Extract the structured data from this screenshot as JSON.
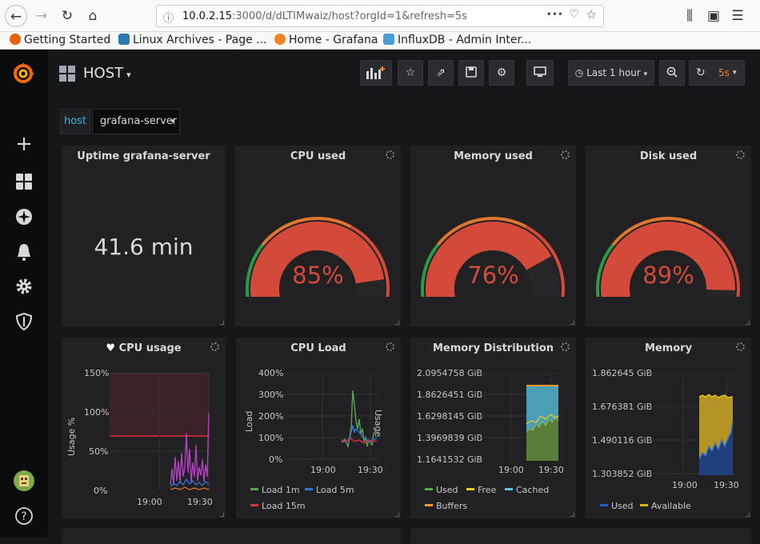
{
  "browser": {
    "url_host": "10.0.2.15",
    "url_rest": ":3000/d/dLTIMwaiz/host?orgId=1&refresh=5s",
    "menu_dots": "•••",
    "bookmarks": [
      {
        "label": "Getting Started",
        "color": "#e66000"
      },
      {
        "label": "Linux Archives - Page ...",
        "color": "#2a7ab0"
      },
      {
        "label": "Home - Grafana",
        "color": "#f58220"
      },
      {
        "label": "InfluxDB - Admin Inter...",
        "color": "#4a9fd8"
      }
    ]
  },
  "dashboard": {
    "title": "HOST",
    "time_range": "Last 1 hour",
    "refresh": "5s"
  },
  "variable": {
    "label": "host",
    "value": "grafana-server"
  },
  "panels": {
    "uptime": {
      "title": "Uptime grafana-server",
      "value": "41.6 min"
    },
    "gauges": [
      {
        "title": "CPU used",
        "value": "85%",
        "fraction": 0.85
      },
      {
        "title": "Memory used",
        "value": "76%",
        "fraction": 0.76
      },
      {
        "title": "Disk used",
        "value": "89%",
        "fraction": 0.89
      }
    ],
    "cpu_usage": {
      "title": "CPU usage",
      "ylabel": "Usage %",
      "yticks": [
        "150%",
        "100%",
        "50%",
        "0%"
      ],
      "xticks": [
        "19:00",
        "19:30"
      ]
    },
    "cpu_load": {
      "title": "CPU Load",
      "ylabel": "Load",
      "ylabel_right": "Usage",
      "yticks": [
        "400%",
        "300%",
        "200%",
        "100%",
        "0%"
      ],
      "xticks": [
        "19:00",
        "19:30"
      ],
      "legend": [
        {
          "label": "Load 1m",
          "color": "#56a64b"
        },
        {
          "label": "Load 5m",
          "color": "#3274d9"
        },
        {
          "label": "Load 15m",
          "color": "#e02f44"
        }
      ]
    },
    "mem_dist": {
      "title": "Memory Distribution",
      "yticks": [
        "2.0954758 GiB",
        "1.8626451 GiB",
        "1.6298145 GiB",
        "1.3969839 GiB",
        "1.1641532 GiB"
      ],
      "xticks": [
        "19:00",
        "19:30"
      ],
      "legend": [
        {
          "label": "Used",
          "color": "#56a64b"
        },
        {
          "label": "Free",
          "color": "#f2cc0c"
        },
        {
          "label": "Cached",
          "color": "#5bc0de"
        },
        {
          "label": "Buffers",
          "color": "#ff9830"
        }
      ]
    },
    "memory": {
      "title": "Memory",
      "yticks": [
        "1.862645 GiB",
        "1.676381 GiB",
        "1.490116 GiB",
        "1.303852 GiB"
      ],
      "xticks": [
        "19:00",
        "19:30"
      ],
      "legend": [
        {
          "label": "Used",
          "color": "#1f60c4"
        },
        {
          "label": "Available",
          "color": "#e0b400"
        }
      ]
    }
  }
}
